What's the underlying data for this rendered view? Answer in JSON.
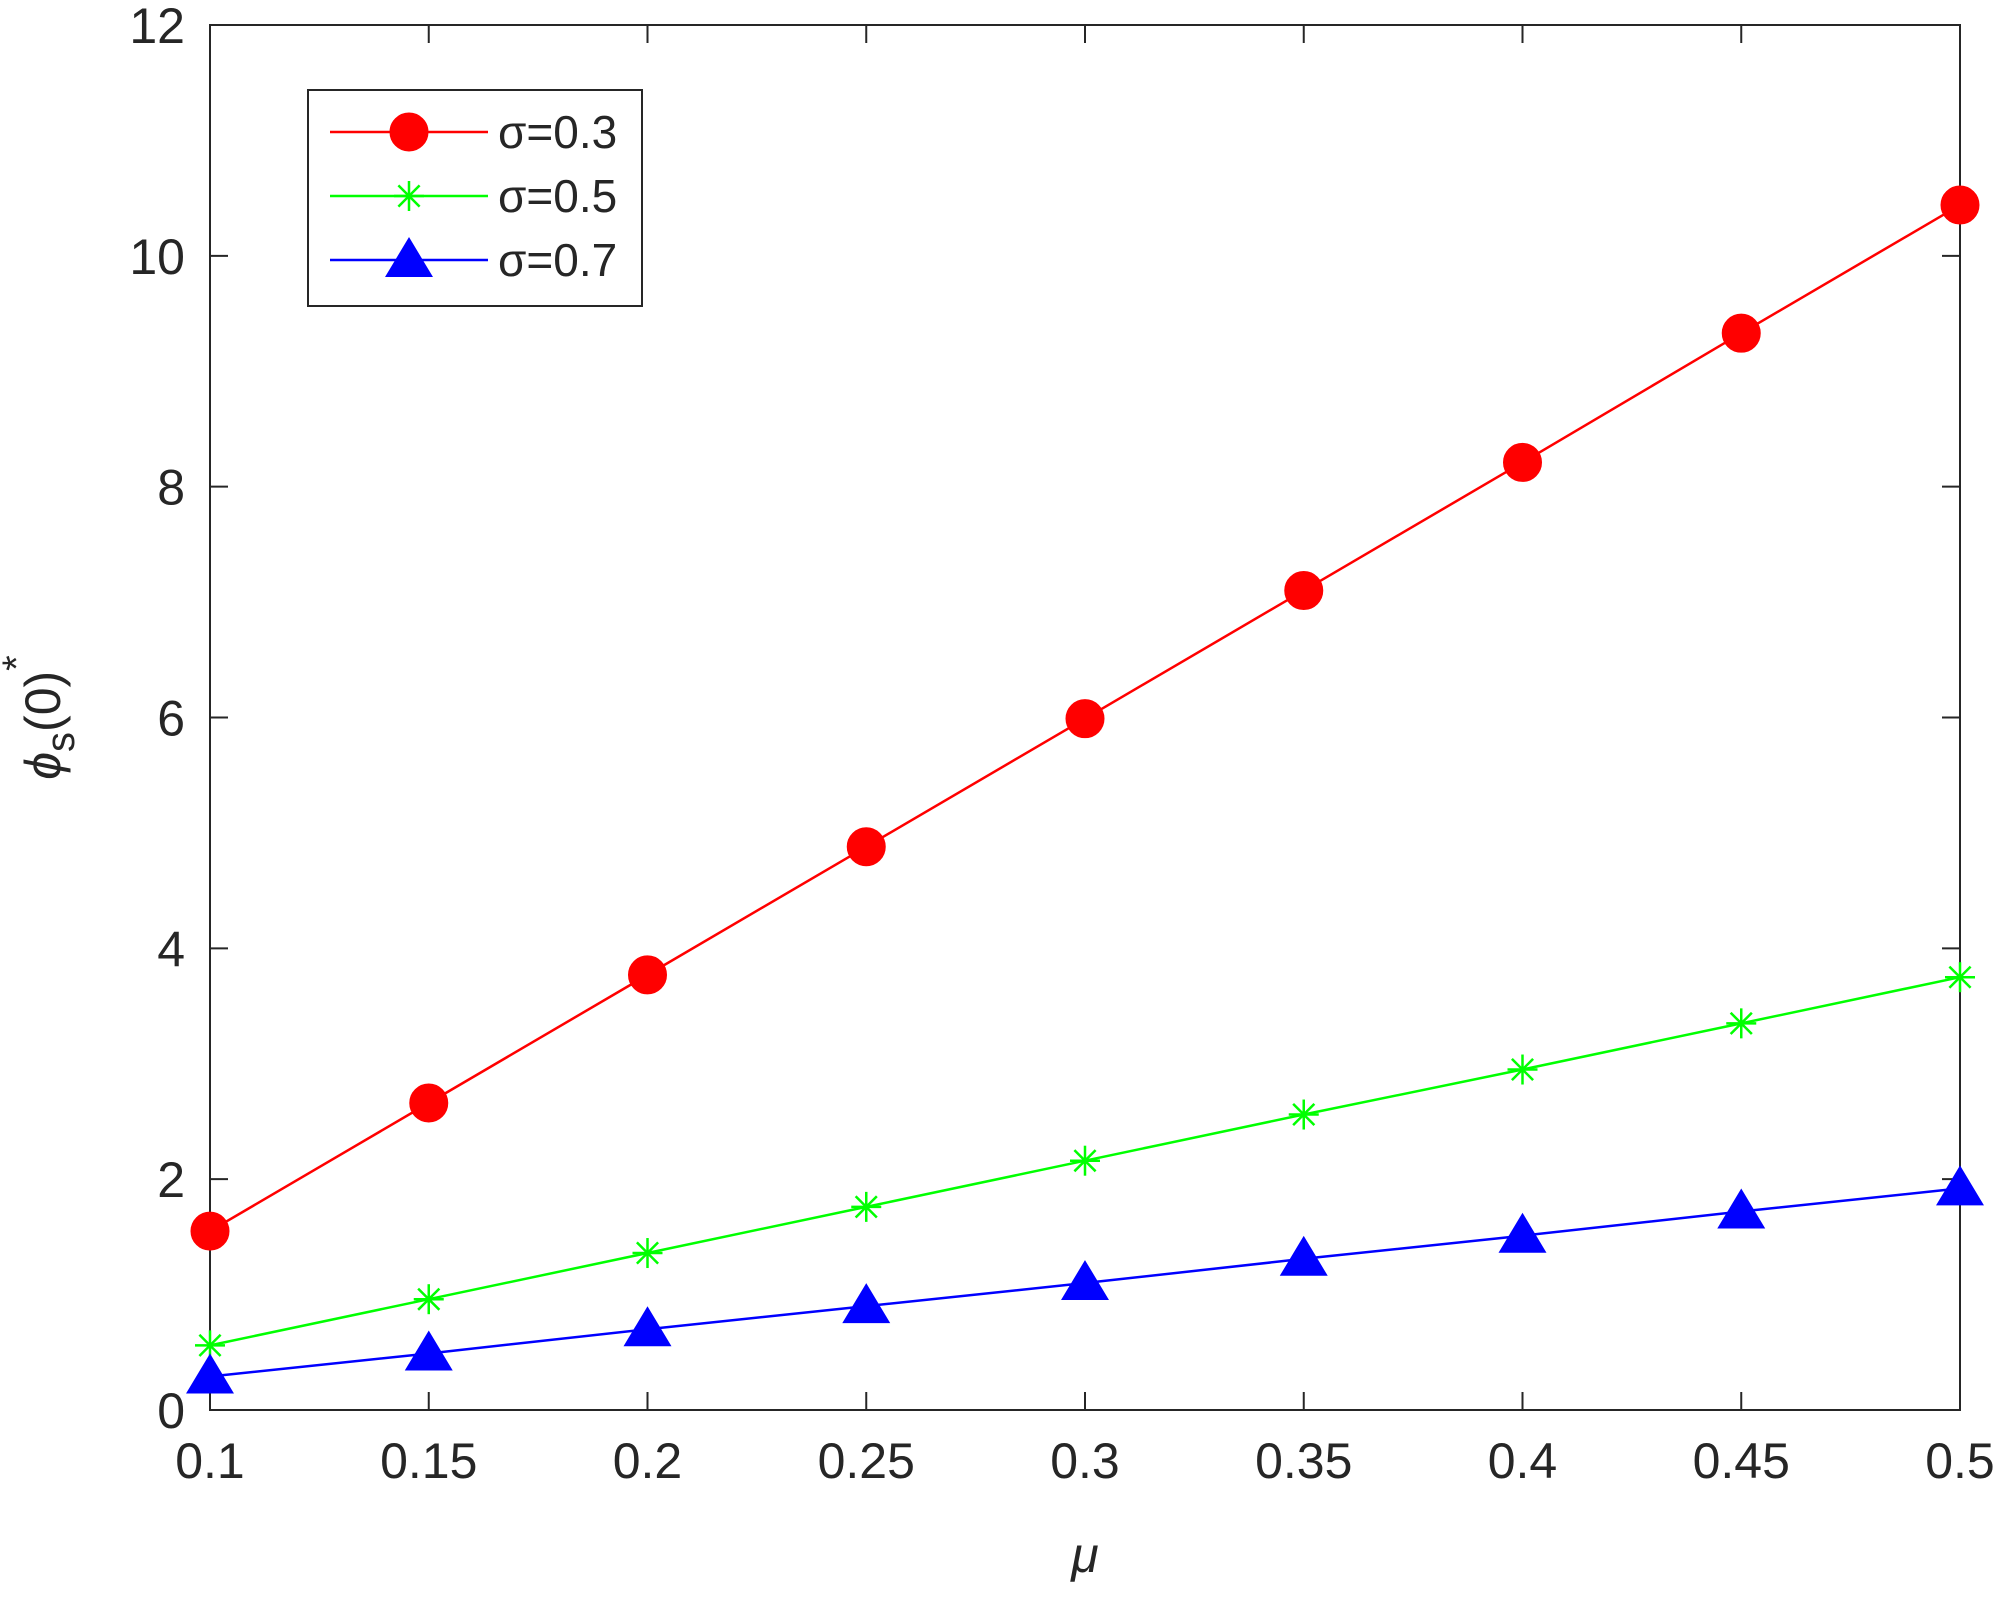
{
  "chart_data": {
    "type": "line",
    "title": "",
    "xlabel": "μ",
    "ylabel": {
      "symbol": "ϕ",
      "subscript": "s",
      "body": "(0)",
      "superscript": "*"
    },
    "xlim": [
      0.1,
      0.5
    ],
    "ylim": [
      0,
      12
    ],
    "x": [
      0.1,
      0.15,
      0.2,
      0.25,
      0.3,
      0.35,
      0.4,
      0.45,
      0.5
    ],
    "xticks": [
      "0.1",
      "0.15",
      "0.2",
      "0.25",
      "0.3",
      "0.35",
      "0.4",
      "0.45",
      "0.5"
    ],
    "yticks": [
      "0",
      "2",
      "4",
      "6",
      "8",
      "10",
      "12"
    ],
    "grid": false,
    "legend_position": "top-left",
    "series": [
      {
        "name": "σ=0.3",
        "color": "#ff0000",
        "marker": "circle",
        "values": [
          1.55,
          2.66,
          3.77,
          4.88,
          5.99,
          7.1,
          8.21,
          9.33,
          10.44
        ]
      },
      {
        "name": "σ=0.5",
        "color": "#00ff00",
        "marker": "asterisk",
        "values": [
          0.56,
          0.96,
          1.36,
          1.76,
          2.16,
          2.56,
          2.95,
          3.35,
          3.75
        ]
      },
      {
        "name": "σ=0.7",
        "color": "#0000ff",
        "marker": "triangle",
        "values": [
          0.29,
          0.49,
          0.7,
          0.9,
          1.1,
          1.31,
          1.51,
          1.72,
          1.92
        ]
      }
    ]
  }
}
